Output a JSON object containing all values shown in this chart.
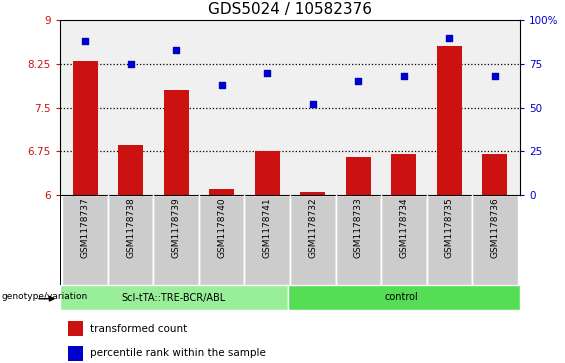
{
  "title": "GDS5024 / 10582376",
  "samples": [
    "GSM1178737",
    "GSM1178738",
    "GSM1178739",
    "GSM1178740",
    "GSM1178741",
    "GSM1178732",
    "GSM1178733",
    "GSM1178734",
    "GSM1178735",
    "GSM1178736"
  ],
  "transformed_count": [
    8.3,
    6.85,
    7.8,
    6.1,
    6.75,
    6.05,
    6.65,
    6.7,
    8.55,
    6.7
  ],
  "percentile_rank": [
    88,
    75,
    83,
    63,
    70,
    52,
    65,
    68,
    90,
    68
  ],
  "ylim_left": [
    6,
    9
  ],
  "ylim_right": [
    0,
    100
  ],
  "yticks_left": [
    6,
    6.75,
    7.5,
    8.25,
    9
  ],
  "yticks_right": [
    0,
    25,
    50,
    75,
    100
  ],
  "bar_color": "#cc1111",
  "dot_color": "#0000cc",
  "bar_bottom": 6,
  "group1_label": "ScI-tTA::TRE-BCR/ABL",
  "group2_label": "control",
  "group1_n": 5,
  "group2_n": 5,
  "group1_color": "#99ee99",
  "group2_color": "#55dd55",
  "legend_bar_label": "transformed count",
  "legend_dot_label": "percentile rank within the sample",
  "genotype_label": "genotype/variation",
  "title_fontsize": 11,
  "tick_fontsize": 7.5,
  "sample_bg_color": "#cccccc",
  "plot_bg_color": "#f0f0f0"
}
